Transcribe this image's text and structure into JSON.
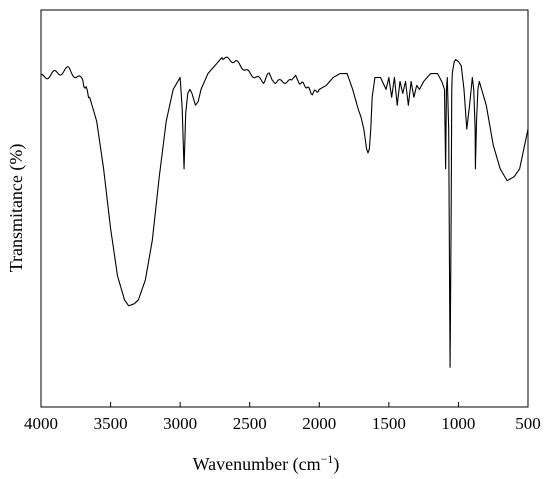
{
  "chart_data": {
    "type": "line",
    "title": "",
    "xlabel": "Wavenumber (cm",
    "xlabel_superscript": "−1",
    "xlabel_suffix": ")",
    "ylabel": "Transmitance (%)",
    "xlim": [
      4000,
      500
    ],
    "x_reversed": true,
    "ylim": [
      0,
      100
    ],
    "y_tick_labels_shown": false,
    "grid": false,
    "legend": "none",
    "line_color": "#000000",
    "x_ticks": [
      4000,
      3500,
      3000,
      2500,
      2000,
      1500,
      1000,
      500
    ],
    "x_tick_labels": [
      "4000",
      "3500",
      "3000",
      "2500",
      "2000",
      "1500",
      "1000",
      "500"
    ],
    "series": [
      {
        "x": [
          4000,
          3900,
          3800,
          3700,
          3650,
          3600,
          3550,
          3500,
          3450,
          3400,
          3370,
          3330,
          3300,
          3250,
          3200,
          3150,
          3100,
          3050,
          3000,
          2985,
          2972,
          2960,
          2945,
          2930,
          2915,
          2890,
          2870,
          2850,
          2800,
          2750,
          2700,
          2600,
          2500,
          2400,
          2360,
          2340,
          2300,
          2200,
          2170,
          2150,
          2100,
          2050,
          2000,
          1950,
          1900,
          1850,
          1800,
          1760,
          1720,
          1700,
          1680,
          1660,
          1650,
          1640,
          1630,
          1620,
          1600,
          1560,
          1520,
          1500,
          1480,
          1460,
          1440,
          1420,
          1400,
          1380,
          1360,
          1340,
          1320,
          1300,
          1280,
          1250,
          1200,
          1150,
          1120,
          1100,
          1092,
          1086,
          1080,
          1070,
          1060,
          1052,
          1048,
          1044,
          1040,
          1035,
          1030,
          1020,
          1000,
          980,
          960,
          940,
          920,
          900,
          890,
          880,
          878,
          870,
          860,
          850,
          800,
          750,
          700,
          650,
          600,
          560,
          530,
          500
        ],
        "y": [
          83,
          84,
          85,
          82,
          78,
          72,
          60,
          45,
          33,
          27,
          25.5,
          26,
          27,
          32,
          42,
          58,
          72,
          80,
          83,
          75,
          60,
          74,
          79,
          80,
          79,
          76,
          77,
          80,
          84,
          86,
          88,
          87,
          84,
          82,
          84,
          82,
          82,
          82,
          84,
          82,
          81,
          79,
          80,
          81,
          83,
          84,
          84,
          80,
          75,
          73,
          70,
          65,
          64,
          65,
          70,
          78,
          83,
          83,
          80,
          83,
          78,
          83,
          76,
          82,
          79,
          82,
          76,
          82,
          78,
          81,
          80,
          82,
          84,
          84,
          82,
          80,
          60,
          80,
          83,
          70,
          10,
          50,
          80,
          84,
          85,
          86,
          87,
          87.5,
          87,
          86,
          80,
          70,
          76,
          83,
          80,
          70,
          60,
          72,
          80,
          82,
          76,
          66,
          60,
          57,
          58,
          60,
          65,
          70
        ]
      }
    ]
  }
}
